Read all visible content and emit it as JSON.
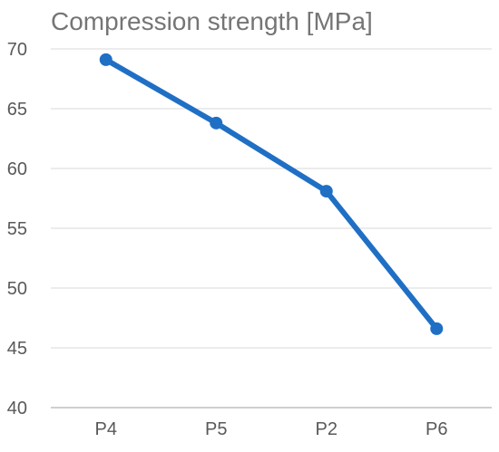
{
  "chart_data": {
    "type": "line",
    "title": "Compression strength [MPa]",
    "categories": [
      "P4",
      "P5",
      "P2",
      "P6"
    ],
    "series": [
      {
        "values": [
          69.1,
          63.8,
          58.1,
          46.6
        ]
      }
    ],
    "xlabel": "",
    "ylabel": "",
    "ylim": [
      40,
      70
    ],
    "yticks": [
      40,
      45,
      50,
      55,
      60,
      65,
      70
    ],
    "grid": true,
    "legend": "none",
    "colors": {
      "line": "#1F6FC5",
      "grid": "#d9d9d9",
      "text": "#595959",
      "title": "#757575"
    }
  }
}
